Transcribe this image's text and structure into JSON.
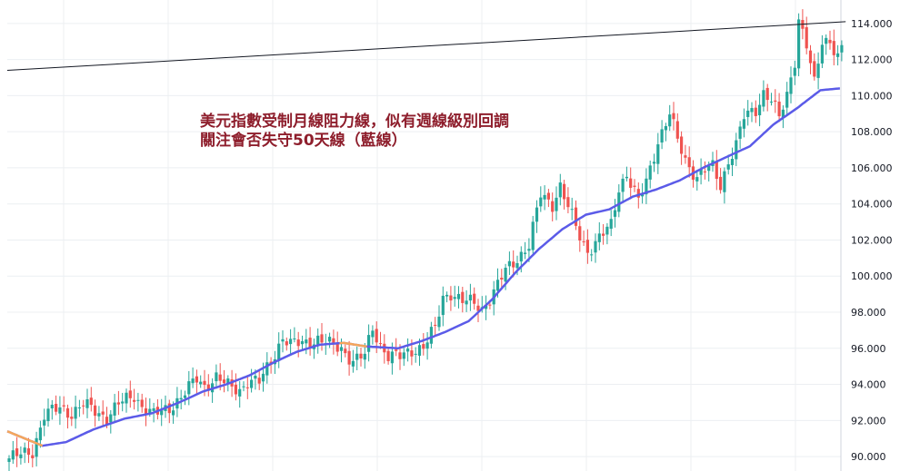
{
  "annotation": {
    "line1": "美元指數受制月線阻力線，似有週線級別回調",
    "line2": "關注會否失守50天線（藍線）"
  },
  "colors": {
    "up": "#26a69a",
    "down": "#ef5350",
    "ma50": "#5b5be8",
    "ma50_alt": "#f5a65b",
    "trendline": "#131722",
    "grid": "#eceff2",
    "annotation": "#8e1e2c"
  },
  "chart_data": {
    "type": "candlestick",
    "y_ticks": [
      "90.000",
      "92.000",
      "94.000",
      "96.000",
      "98.000",
      "100.000",
      "102.000",
      "104.000",
      "106.000",
      "108.000",
      "110.000",
      "112.000",
      "114.000"
    ],
    "ylim": [
      89.2,
      115.3
    ],
    "grid": true,
    "price_path": [
      [
        0,
        89.9
      ],
      [
        6,
        90.3
      ],
      [
        9,
        92.3
      ],
      [
        13,
        92.7
      ],
      [
        16,
        92.4
      ],
      [
        19,
        92.9
      ],
      [
        23,
        92.4
      ],
      [
        25,
        92.2
      ],
      [
        28,
        92.9
      ],
      [
        32,
        93.4
      ],
      [
        34,
        92.8
      ],
      [
        37,
        92.3
      ],
      [
        41,
        92.7
      ],
      [
        44,
        93.3
      ],
      [
        48,
        94.3
      ],
      [
        50,
        93.9
      ],
      [
        53,
        94.4
      ],
      [
        56,
        93.9
      ],
      [
        59,
        93.7
      ],
      [
        61,
        94.2
      ],
      [
        64,
        94.1
      ],
      [
        67,
        95.3
      ],
      [
        70,
        96.6
      ],
      [
        72,
        96.2
      ],
      [
        75,
        96.3
      ],
      [
        79,
        96.5
      ],
      [
        82,
        96.2
      ],
      [
        85,
        96.0
      ],
      [
        88,
        95.3
      ],
      [
        91,
        95.6
      ],
      [
        93,
        97.1
      ],
      [
        95,
        96.2
      ],
      [
        97,
        95.6
      ],
      [
        100,
        95.5
      ],
      [
        103,
        95.9
      ],
      [
        106,
        96.1
      ],
      [
        109,
        97.1
      ],
      [
        111,
        98.8
      ],
      [
        113,
        99.1
      ],
      [
        116,
        98.6
      ],
      [
        119,
        98.5
      ],
      [
        121,
        98.2
      ],
      [
        124,
        99.1
      ],
      [
        127,
        100.3
      ],
      [
        130,
        101.0
      ],
      [
        133,
        101.7
      ],
      [
        136,
        104.5
      ],
      [
        139,
        104.0
      ],
      [
        141,
        105.0
      ],
      [
        143,
        103.8
      ],
      [
        146,
        102.2
      ],
      [
        148,
        101.4
      ],
      [
        151,
        102.1
      ],
      [
        154,
        102.8
      ],
      [
        156,
        104.9
      ],
      [
        158,
        105.7
      ],
      [
        161,
        104.1
      ],
      [
        163,
        105.2
      ],
      [
        166,
        107.5
      ],
      [
        169,
        109.0
      ],
      [
        171,
        107.5
      ],
      [
        173,
        106.4
      ],
      [
        176,
        105.5
      ],
      [
        178,
        105.9
      ],
      [
        180,
        106.0
      ],
      [
        182,
        105.0
      ],
      [
        184,
        106.4
      ],
      [
        186,
        107.3
      ],
      [
        188,
        108.8
      ],
      [
        191,
        109.2
      ],
      [
        193,
        110.2
      ],
      [
        195,
        109.8
      ],
      [
        197,
        108.7
      ],
      [
        199,
        110.0
      ],
      [
        201,
        112.0
      ],
      [
        202,
        114.3
      ],
      [
        204,
        112.8
      ],
      [
        206,
        110.6
      ],
      [
        208,
        113.0
      ],
      [
        210,
        113.1
      ],
      [
        212,
        112.2
      ],
      [
        213,
        112.6
      ]
    ],
    "ma50_path": [
      [
        0,
        91.4
      ],
      [
        9,
        90.6
      ],
      [
        15,
        90.8
      ],
      [
        22,
        91.5
      ],
      [
        30,
        92.1
      ],
      [
        37,
        92.4
      ],
      [
        44,
        93.0
      ],
      [
        50,
        93.6
      ],
      [
        56,
        94.0
      ],
      [
        62,
        94.5
      ],
      [
        68,
        95.2
      ],
      [
        74,
        95.8
      ],
      [
        80,
        96.2
      ],
      [
        86,
        96.3
      ],
      [
        92,
        96.1
      ],
      [
        100,
        96.0
      ],
      [
        106,
        96.4
      ],
      [
        112,
        96.9
      ],
      [
        118,
        97.5
      ],
      [
        124,
        98.7
      ],
      [
        130,
        100.2
      ],
      [
        136,
        101.5
      ],
      [
        142,
        102.6
      ],
      [
        148,
        103.4
      ],
      [
        154,
        103.7
      ],
      [
        160,
        104.4
      ],
      [
        166,
        104.8
      ],
      [
        172,
        105.3
      ],
      [
        178,
        106.0
      ],
      [
        184,
        106.6
      ],
      [
        190,
        107.2
      ],
      [
        196,
        108.4
      ],
      [
        202,
        109.3
      ],
      [
        208,
        110.3
      ],
      [
        213,
        110.4
      ]
    ],
    "ma50_alt_segments": [
      [
        0,
        9
      ],
      [
        85,
        92
      ]
    ],
    "trendline": {
      "from": [
        0,
        111.4
      ],
      "to": [
        214,
        114.1
      ]
    }
  }
}
